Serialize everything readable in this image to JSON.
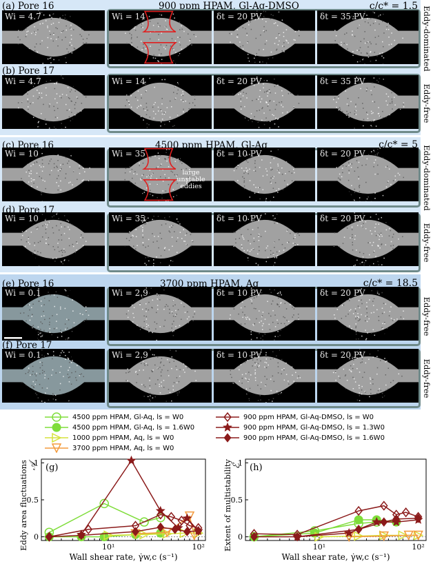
{
  "groups": [
    {
      "title": "900 ppm HPAM, Gl-Aq-DMSO",
      "concentration": "c/c* = 1.5",
      "rows": [
        {
          "label": "(a) Pore 16",
          "side_label": "Eddy-dominated",
          "frames": [
            "Wi = 4.7",
            "Wi = 14",
            "δt = 20 PV",
            "δt = 35 PV"
          ]
        },
        {
          "label": "(b) Pore 17",
          "side_label": "Eddy-free",
          "frames": [
            "Wi = 4.7",
            "Wi = 14",
            "δt = 20 PV",
            "δt = 35 PV"
          ]
        }
      ]
    },
    {
      "title": "4500 ppm HPAM, Gl-Aq",
      "concentration": "c/c* = 5",
      "rows": [
        {
          "label": "(c) Pore 16",
          "side_label": "Eddy-dominated",
          "frames": [
            "Wi = 10",
            "Wi = 35",
            "δt = 10 PV",
            "δt = 20 PV"
          ]
        },
        {
          "label": "(d) Pore 17",
          "side_label": "Eddy-free",
          "frames": [
            "Wi = 10",
            "Wi = 35",
            "δt = 10 PV",
            "δt = 20 PV"
          ]
        }
      ],
      "annotation": "large unstable eddies"
    },
    {
      "title": "3700 ppm HPAM, Aq",
      "concentration": "c/c* = 18.5",
      "rows": [
        {
          "label": "(e) Pore 16",
          "side_label": "Eddy-free",
          "frames": [
            "Wi = 0.1",
            "Wi = 2.9",
            "δt = 10 PV",
            "δt = 20 PV"
          ]
        },
        {
          "label": "(f) Pore 17",
          "side_label": "Eddy-free",
          "frames": [
            "Wi = 0.1",
            "Wi = 2.9",
            "δt = 10 PV",
            "δt = 20 PV"
          ]
        }
      ]
    }
  ],
  "legend": {
    "left": [
      {
        "label": "4500 ppm HPAM, Gl-Aq, ls = W0",
        "color": "#7fdd3a",
        "marker": "open-circle"
      },
      {
        "label": "4500 ppm HPAM, Gl-Aq, ls = 1.6W0",
        "color": "#7fdd3a",
        "marker": "filled-circle"
      },
      {
        "label": "1000 ppm HPAM, Aq, ls = W0",
        "color": "#d6e23a",
        "marker": "open-triangle-right"
      },
      {
        "label": "3700 ppm HPAM, Aq, ls = W0",
        "color": "#f39a3c",
        "marker": "open-triangle-down"
      }
    ],
    "right": [
      {
        "label": "900 ppm HPAM, Gl-Aq-DMSO, ls = W0",
        "color": "#8b1a1a",
        "marker": "open-diamond"
      },
      {
        "label": "900 ppm HPAM, Gl-Aq-DMSO, ls = 1.3W0",
        "color": "#8b1a1a",
        "marker": "filled-star"
      },
      {
        "label": "900 ppm HPAM, Gl-Aq-DMSO, ls = 1.6W0",
        "color": "#8b1a1a",
        "marker": "filled-diamond"
      }
    ]
  },
  "chart_data": [
    {
      "type": "line",
      "panel_label": "(g)",
      "ylabel": "Eddy area fluctuations",
      "ysymbol": "𝒜",
      "xlabel": "Wall shear rate, γ̇w,c (s⁻¹)",
      "xscale": "log",
      "xlim": [
        1.8,
        120
      ],
      "ylim": [
        -0.05,
        1.05
      ],
      "yticks": [
        "0",
        "0.5",
        "1"
      ],
      "xticks": [
        "10¹",
        "10²"
      ],
      "series": [
        {
          "name": "4500 ppm HPAM, Gl-Aq, ls = W0",
          "x": [
            2.2,
            9,
            25,
            38
          ],
          "y": [
            0.06,
            0.45,
            0.2,
            0.26
          ]
        },
        {
          "name": "4500 ppm HPAM, Gl-Aq, ls = 1.6W0",
          "x": [
            2.2,
            5,
            9,
            20,
            38
          ],
          "y": [
            0.0,
            0.0,
            0.0,
            0.03,
            0.05
          ]
        },
        {
          "name": "1000 ppm HPAM, Aq, ls = W0",
          "x": [
            10,
            25,
            45,
            70,
            100
          ],
          "y": [
            0.02,
            0.03,
            0.04,
            0.05,
            0.05
          ]
        },
        {
          "name": "3700 ppm HPAM, Aq, ls = W0",
          "x": [
            20,
            45,
            80,
            90
          ],
          "y": [
            0.04,
            0.06,
            0.28,
            0.02
          ]
        },
        {
          "name": "900 ppm HPAM, Gl-Aq-DMSO, ls = W0",
          "x": [
            2.2,
            6,
            20,
            38,
            50,
            65,
            80,
            100
          ],
          "y": [
            0.0,
            0.1,
            0.15,
            0.3,
            0.27,
            0.22,
            0.15,
            0.12
          ]
        },
        {
          "name": "900 ppm HPAM, Gl-Aq-DMSO, ls = 1.3W0",
          "x": [
            5,
            18,
            38,
            60,
            75,
            100
          ],
          "y": [
            0.03,
            1.03,
            0.35,
            0.12,
            0.25,
            0.08
          ]
        },
        {
          "name": "900 ppm HPAM, Gl-Aq-DMSO, ls = 1.6W0",
          "x": [
            2.2,
            5,
            20,
            38,
            55,
            75,
            100
          ],
          "y": [
            0.0,
            0.02,
            0.07,
            0.13,
            0.1,
            0.07,
            0.08
          ]
        }
      ]
    },
    {
      "type": "line",
      "panel_label": "(h)",
      "ylabel": "Extent of multistability",
      "ysymbol": "ℰ",
      "xlabel": "Wall shear rate, γ̇w,c (s⁻¹)",
      "xscale": "log",
      "xlim": [
        1.8,
        120
      ],
      "ylim": [
        -0.05,
        1.05
      ],
      "yticks": [
        "0",
        "0.5",
        "1"
      ],
      "xticks": [
        "10¹",
        "10²"
      ],
      "series": [
        {
          "name": "4500 ppm HPAM, Gl-Aq, ls = W0",
          "x": [
            2.2,
            9,
            25,
            38
          ],
          "y": [
            0.0,
            0.08,
            0.18,
            0.2
          ]
        },
        {
          "name": "4500 ppm HPAM, Gl-Aq, ls = 1.6W0",
          "x": [
            2.2,
            9,
            25,
            38,
            60
          ],
          "y": [
            0.0,
            0.05,
            0.23,
            0.23,
            0.2
          ]
        },
        {
          "name": "1000 ppm HPAM, Aq, ls = W0",
          "x": [
            10,
            25,
            45,
            70,
            100
          ],
          "y": [
            0.0,
            0.01,
            0.02,
            0.02,
            0.02
          ]
        },
        {
          "name": "3700 ppm HPAM, Aq, ls = W0",
          "x": [
            20,
            45,
            80,
            100
          ],
          "y": [
            0.0,
            0.01,
            0.02,
            0.02
          ]
        },
        {
          "name": "900 ppm HPAM, Gl-Aq-DMSO, ls = W0",
          "x": [
            2.2,
            6,
            25,
            45,
            60,
            75,
            100
          ],
          "y": [
            0.04,
            0.03,
            0.35,
            0.42,
            0.3,
            0.33,
            0.27
          ]
        },
        {
          "name": "900 ppm HPAM, Gl-Aq-DMSO, ls = 1.3W0",
          "x": [
            6,
            20,
            38,
            60,
            100
          ],
          "y": [
            0.0,
            0.05,
            0.2,
            0.2,
            0.23
          ]
        },
        {
          "name": "900 ppm HPAM, Gl-Aq-DMSO, ls = 1.6W0",
          "x": [
            2.2,
            6,
            25,
            45,
            60,
            100
          ],
          "y": [
            0.0,
            0.0,
            0.1,
            0.2,
            0.24,
            0.25
          ]
        }
      ]
    }
  ]
}
